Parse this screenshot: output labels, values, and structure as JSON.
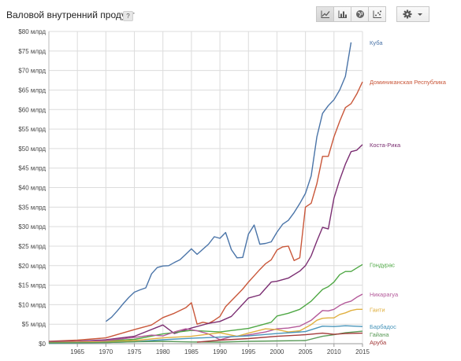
{
  "header": {
    "title": "Валовой внутренний продукт",
    "help_label": "?"
  },
  "toolbar": {
    "buttons": [
      {
        "name": "line-chart-button",
        "icon": "line-chart-icon",
        "active": true
      },
      {
        "name": "bar-chart-button",
        "icon": "bar-chart-icon",
        "active": false
      },
      {
        "name": "map-button",
        "icon": "globe-icon",
        "active": false
      },
      {
        "name": "scatter-button",
        "icon": "scatter-chart-icon",
        "active": false
      }
    ],
    "settings_icon": "gear-icon",
    "dropdown_icon": "caret-down-icon"
  },
  "chart_data": {
    "type": "line",
    "title": "Валовой внутренний продукт",
    "xlim": [
      1960,
      2015
    ],
    "ylim": [
      0,
      80
    ],
    "x_ticks": [
      1965,
      1970,
      1975,
      1980,
      1985,
      1990,
      1995,
      2000,
      2005,
      2010,
      2015
    ],
    "y_ticks": [
      0,
      5,
      10,
      15,
      20,
      25,
      30,
      35,
      40,
      45,
      50,
      55,
      60,
      65,
      70,
      75,
      80
    ],
    "y_tick_labels": [
      "$0",
      "$5 млрд",
      "$10 млрд",
      "$15 млрд",
      "$20 млрд",
      "$25 млрд",
      "$30 млрд",
      "$35 млрд",
      "$40 млрд",
      "$45 млрд",
      "$50 млрд",
      "$55 млрд",
      "$60 млрд",
      "$65 млрд",
      "$70 млрд",
      "$75 млрд",
      "$80 млрд"
    ],
    "grid": true,
    "legend": "right, at line ends",
    "series": [
      {
        "name": "Куба",
        "color": "#4a74a8",
        "points": [
          [
            1970,
            5.7
          ],
          [
            1971,
            6.8
          ],
          [
            1972,
            8.4
          ],
          [
            1973,
            10.2
          ],
          [
            1974,
            11.8
          ],
          [
            1975,
            13.2
          ],
          [
            1976,
            13.8
          ],
          [
            1977,
            14.3
          ],
          [
            1978,
            17.9
          ],
          [
            1979,
            19.5
          ],
          [
            1980,
            19.9
          ],
          [
            1981,
            20.0
          ],
          [
            1982,
            20.8
          ],
          [
            1983,
            21.5
          ],
          [
            1984,
            22.9
          ],
          [
            1985,
            24.3
          ],
          [
            1986,
            22.9
          ],
          [
            1987,
            24.2
          ],
          [
            1988,
            25.5
          ],
          [
            1989,
            27.4
          ],
          [
            1990,
            27.0
          ],
          [
            1991,
            28.5
          ],
          [
            1992,
            24.1
          ],
          [
            1993,
            22.0
          ],
          [
            1994,
            22.1
          ],
          [
            1995,
            28.1
          ],
          [
            1996,
            30.4
          ],
          [
            1997,
            25.5
          ],
          [
            1998,
            25.7
          ],
          [
            1999,
            26.1
          ],
          [
            2000,
            28.6
          ],
          [
            2001,
            30.6
          ],
          [
            2002,
            31.6
          ],
          [
            2003,
            33.6
          ],
          [
            2004,
            35.9
          ],
          [
            2005,
            38.5
          ],
          [
            2006,
            43.0
          ],
          [
            2007,
            53.0
          ],
          [
            2008,
            59.0
          ],
          [
            2009,
            61.0
          ],
          [
            2010,
            62.5
          ],
          [
            2011,
            65.0
          ],
          [
            2012,
            68.5
          ],
          [
            2013,
            77.2
          ]
        ]
      },
      {
        "name": "Доминиканская Республика",
        "color": "#c9573a",
        "points": [
          [
            1960,
            0.6
          ],
          [
            1965,
            0.9
          ],
          [
            1970,
            1.5
          ],
          [
            1975,
            3.6
          ],
          [
            1978,
            4.8
          ],
          [
            1980,
            6.7
          ],
          [
            1982,
            7.8
          ],
          [
            1984,
            9.2
          ],
          [
            1985,
            10.5
          ],
          [
            1986,
            5.0
          ],
          [
            1987,
            5.5
          ],
          [
            1988,
            5.2
          ],
          [
            1989,
            6.0
          ],
          [
            1990,
            7.0
          ],
          [
            1991,
            9.5
          ],
          [
            1992,
            11.0
          ],
          [
            1993,
            12.5
          ],
          [
            1994,
            14.0
          ],
          [
            1995,
            15.8
          ],
          [
            1996,
            17.4
          ],
          [
            1997,
            19.0
          ],
          [
            1998,
            20.5
          ],
          [
            1999,
            21.5
          ],
          [
            2000,
            24.0
          ],
          [
            2001,
            24.8
          ],
          [
            2002,
            25.0
          ],
          [
            2003,
            21.3
          ],
          [
            2004,
            22.0
          ],
          [
            2005,
            35.0
          ],
          [
            2006,
            36.0
          ],
          [
            2007,
            41.0
          ],
          [
            2008,
            48.0
          ],
          [
            2009,
            48.0
          ],
          [
            2010,
            53.0
          ],
          [
            2011,
            57.0
          ],
          [
            2012,
            60.5
          ],
          [
            2013,
            61.5
          ],
          [
            2014,
            64.0
          ],
          [
            2015,
            67.1
          ]
        ]
      },
      {
        "name": "Коста-Рика",
        "color": "#7b2e72",
        "points": [
          [
            1960,
            0.5
          ],
          [
            1965,
            0.6
          ],
          [
            1970,
            1.0
          ],
          [
            1975,
            1.9
          ],
          [
            1980,
            4.8
          ],
          [
            1982,
            2.6
          ],
          [
            1985,
            4.0
          ],
          [
            1988,
            5.2
          ],
          [
            1990,
            5.7
          ],
          [
            1992,
            7.0
          ],
          [
            1995,
            11.7
          ],
          [
            1997,
            12.5
          ],
          [
            1999,
            15.8
          ],
          [
            2000,
            16.0
          ],
          [
            2002,
            16.8
          ],
          [
            2004,
            18.6
          ],
          [
            2005,
            20.0
          ],
          [
            2006,
            22.5
          ],
          [
            2007,
            26.3
          ],
          [
            2008,
            29.8
          ],
          [
            2009,
            29.4
          ],
          [
            2010,
            37.3
          ],
          [
            2011,
            42.0
          ],
          [
            2012,
            46.0
          ],
          [
            2013,
            49.2
          ],
          [
            2014,
            49.6
          ],
          [
            2015,
            51.0
          ]
        ]
      },
      {
        "name": "Гондурас",
        "color": "#4fa845",
        "points": [
          [
            1960,
            0.3
          ],
          [
            1965,
            0.4
          ],
          [
            1970,
            0.7
          ],
          [
            1975,
            1.1
          ],
          [
            1980,
            2.5
          ],
          [
            1985,
            3.4
          ],
          [
            1990,
            3.0
          ],
          [
            1995,
            3.9
          ],
          [
            1997,
            4.7
          ],
          [
            1999,
            5.5
          ],
          [
            2000,
            7.1
          ],
          [
            2002,
            7.8
          ],
          [
            2004,
            8.8
          ],
          [
            2006,
            10.9
          ],
          [
            2008,
            13.9
          ],
          [
            2009,
            14.6
          ],
          [
            2010,
            15.8
          ],
          [
            2011,
            17.7
          ],
          [
            2012,
            18.5
          ],
          [
            2013,
            18.5
          ],
          [
            2014,
            19.4
          ],
          [
            2015,
            20.3
          ]
        ]
      },
      {
        "name": "Никарагуа",
        "color": "#b45a9a",
        "points": [
          [
            1960,
            0.3
          ],
          [
            1965,
            0.5
          ],
          [
            1970,
            0.8
          ],
          [
            1975,
            1.6
          ],
          [
            1978,
            2.2
          ],
          [
            1980,
            2.0
          ],
          [
            1982,
            3.0
          ],
          [
            1984,
            3.8
          ],
          [
            1986,
            3.3
          ],
          [
            1988,
            2.5
          ],
          [
            1990,
            1.0
          ],
          [
            1992,
            1.8
          ],
          [
            1994,
            2.0
          ],
          [
            1996,
            2.5
          ],
          [
            1998,
            3.0
          ],
          [
            2000,
            3.8
          ],
          [
            2002,
            4.0
          ],
          [
            2004,
            4.5
          ],
          [
            2006,
            6.0
          ],
          [
            2008,
            8.5
          ],
          [
            2009,
            8.4
          ],
          [
            2010,
            8.8
          ],
          [
            2011,
            9.8
          ],
          [
            2012,
            10.5
          ],
          [
            2013,
            10.9
          ],
          [
            2014,
            11.9
          ],
          [
            2015,
            12.7
          ]
        ]
      },
      {
        "name": "Гаити",
        "color": "#e0b040",
        "points": [
          [
            1960,
            0.3
          ],
          [
            1965,
            0.4
          ],
          [
            1970,
            0.5
          ],
          [
            1975,
            0.8
          ],
          [
            1980,
            1.5
          ],
          [
            1985,
            1.9
          ],
          [
            1990,
            2.8
          ],
          [
            1993,
            1.9
          ],
          [
            1995,
            2.7
          ],
          [
            1998,
            3.8
          ],
          [
            2000,
            3.6
          ],
          [
            2002,
            3.0
          ],
          [
            2004,
            3.3
          ],
          [
            2006,
            4.9
          ],
          [
            2007,
            6.0
          ],
          [
            2008,
            6.5
          ],
          [
            2009,
            6.6
          ],
          [
            2010,
            6.6
          ],
          [
            2011,
            7.5
          ],
          [
            2012,
            7.9
          ],
          [
            2013,
            8.5
          ],
          [
            2014,
            8.8
          ],
          [
            2015,
            8.8
          ]
        ]
      },
      {
        "name": "Барбадос",
        "color": "#4a96bb",
        "points": [
          [
            1960,
            0.1
          ],
          [
            1965,
            0.2
          ],
          [
            1970,
            0.3
          ],
          [
            1975,
            0.5
          ],
          [
            1980,
            1.0
          ],
          [
            1985,
            1.4
          ],
          [
            1990,
            1.7
          ],
          [
            1995,
            2.0
          ],
          [
            2000,
            2.6
          ],
          [
            2005,
            3.1
          ],
          [
            2008,
            4.5
          ],
          [
            2010,
            4.4
          ],
          [
            2012,
            4.6
          ],
          [
            2015,
            4.4
          ]
        ]
      },
      {
        "name": "Гайана",
        "color": "#5a9a58",
        "points": [
          [
            1960,
            0.2
          ],
          [
            1965,
            0.25
          ],
          [
            1970,
            0.3
          ],
          [
            1975,
            0.5
          ],
          [
            1980,
            0.6
          ],
          [
            1985,
            0.45
          ],
          [
            1990,
            0.4
          ],
          [
            1995,
            0.6
          ],
          [
            2000,
            0.7
          ],
          [
            2005,
            0.8
          ],
          [
            2008,
            1.9
          ],
          [
            2010,
            2.3
          ],
          [
            2012,
            2.8
          ],
          [
            2015,
            3.2
          ]
        ]
      },
      {
        "name": "Аруба",
        "color": "#a33a3a",
        "points": [
          [
            1986,
            0.4
          ],
          [
            1990,
            0.9
          ],
          [
            1995,
            1.3
          ],
          [
            2000,
            1.9
          ],
          [
            2005,
            2.3
          ],
          [
            2008,
            2.7
          ],
          [
            2010,
            2.4
          ],
          [
            2012,
            2.6
          ],
          [
            2015,
            2.7
          ]
        ]
      }
    ]
  }
}
